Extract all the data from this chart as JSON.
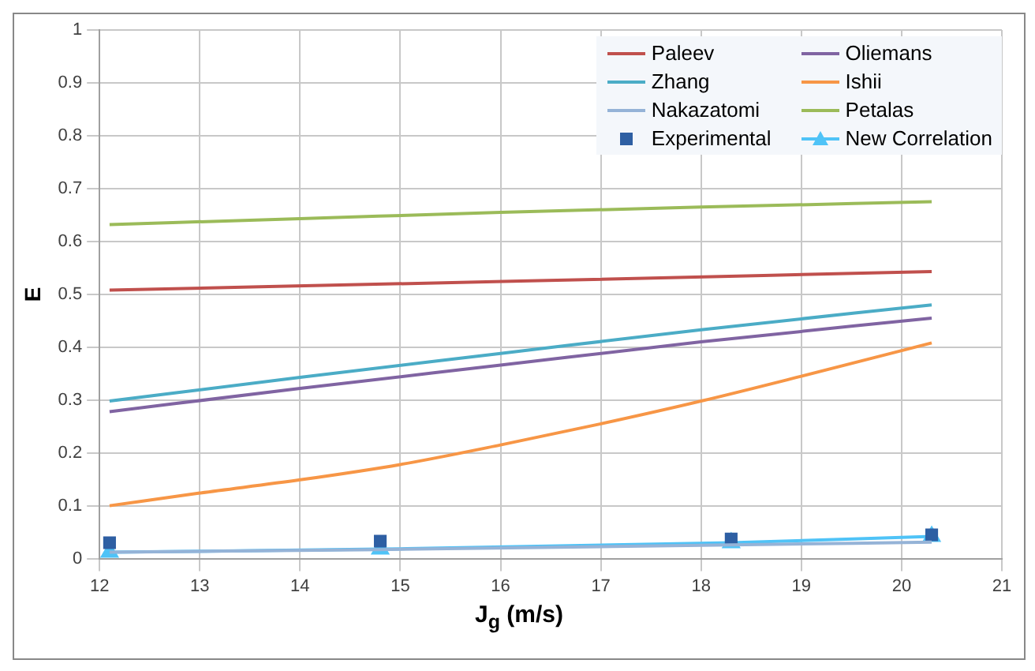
{
  "chart_data": {
    "type": "line",
    "xlabel": "J$_{g}$ (m/s)",
    "ylabel": "E",
    "xlim": [
      12,
      21
    ],
    "xticks": [
      12,
      13,
      14,
      15,
      16,
      17,
      18,
      19,
      20,
      21
    ],
    "ylim": [
      0,
      1
    ],
    "yticks": [
      0,
      0.1,
      0.2,
      0.3,
      0.4,
      0.5,
      0.6,
      0.7,
      0.8,
      0.9,
      1
    ],
    "grid": true,
    "legend": "top right",
    "marker": "none",
    "series": [
      {
        "name": "Paleev",
        "color": "#c0504d",
        "x": [
          12.1,
          16.2,
          20.3
        ],
        "values": [
          0.508,
          0.525,
          0.543
        ]
      },
      {
        "name": "Oliemans",
        "color": "#8064a2",
        "x": [
          12.1,
          14,
          16,
          18,
          20.3
        ],
        "values": [
          0.278,
          0.322,
          0.366,
          0.41,
          0.455
        ]
      },
      {
        "name": "Zhang",
        "color": "#4bacc6",
        "x": [
          12.1,
          14,
          16,
          18,
          20.3
        ],
        "values": [
          0.298,
          0.343,
          0.388,
          0.433,
          0.48
        ]
      },
      {
        "name": "Ishii",
        "color": "#f79646",
        "x": [
          12.1,
          13,
          14,
          15,
          16,
          17,
          18,
          19,
          20.3
        ],
        "values": [
          0.1,
          0.124,
          0.149,
          0.178,
          0.215,
          0.255,
          0.298,
          0.345,
          0.408
        ]
      },
      {
        "name": "Nakazatomi",
        "color": "#95b3d7",
        "x": [
          12.1,
          14.8,
          18.3,
          20.3
        ],
        "values": [
          0.012,
          0.017,
          0.026,
          0.031
        ]
      },
      {
        "name": "Petalas",
        "color": "#9bbb59",
        "x": [
          12.1,
          14,
          16,
          18,
          20.3
        ],
        "values": [
          0.632,
          0.643,
          0.655,
          0.665,
          0.675
        ]
      },
      {
        "name": "Experimental",
        "type": "scatter",
        "marker": "square",
        "color": "#2e5fa3",
        "x": [
          12.1,
          14.8,
          18.3,
          20.3
        ],
        "values": [
          0.03,
          0.033,
          0.037,
          0.045
        ]
      },
      {
        "name": "New Correlation",
        "marker": "triangle",
        "color": "#4fc3f7",
        "x": [
          12.1,
          14.8,
          18.3,
          20.3
        ],
        "values": [
          0.012,
          0.018,
          0.03,
          0.042
        ]
      }
    ]
  }
}
